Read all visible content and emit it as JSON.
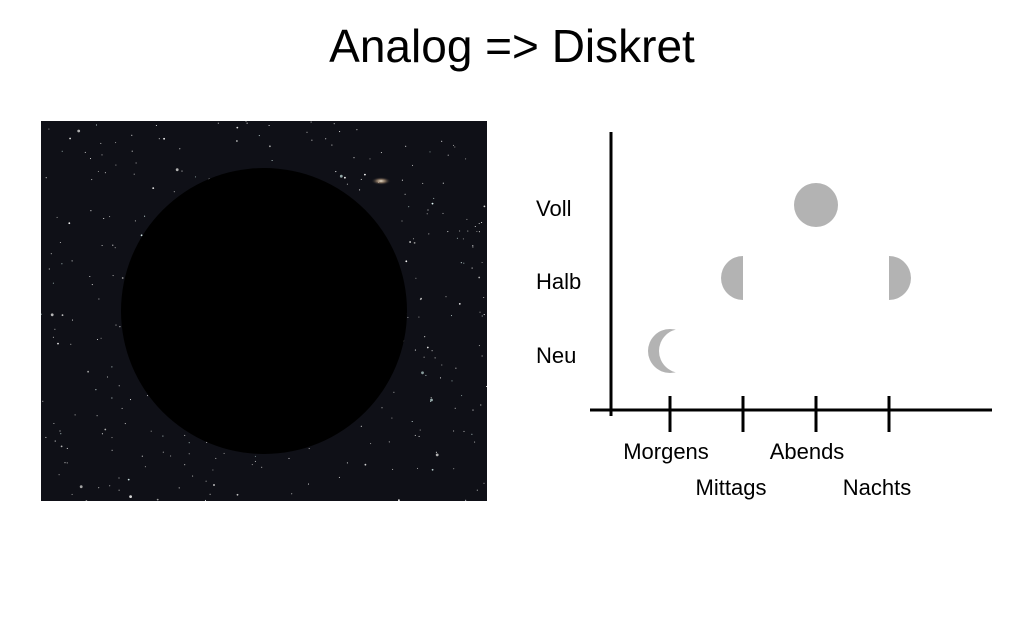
{
  "title": "Analog => Diskret",
  "diagram": {
    "y_levels": [
      "Neu",
      "Halb",
      "Voll"
    ],
    "x_categories": [
      "Morgens",
      "Mittags",
      "Abends",
      "Nachts"
    ],
    "points": [
      {
        "x": "Morgens",
        "y": "Neu",
        "shape": "crescent"
      },
      {
        "x": "Mittags",
        "y": "Halb",
        "shape": "half-left"
      },
      {
        "x": "Abends",
        "y": "Voll",
        "shape": "full"
      },
      {
        "x": "Nachts",
        "y": "Halb",
        "shape": "half-right"
      }
    ],
    "marker_color": "#b3b3b3",
    "axis_color": "#000000"
  },
  "photo": {
    "description_icon": "moon-eclipse-starfield",
    "sky_color": "#0f1017",
    "disc_color": "#000000"
  }
}
